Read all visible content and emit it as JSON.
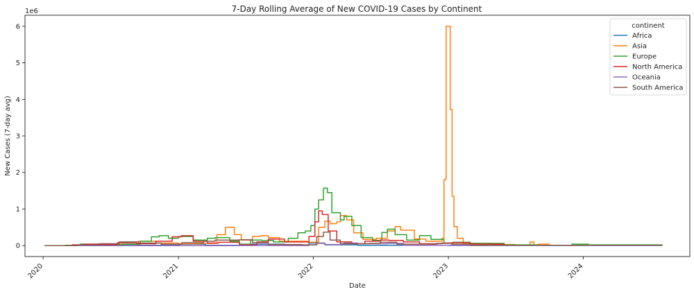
{
  "chart_data": {
    "type": "line",
    "title": "7-Day Rolling Average of New COVID-19 Cases by Continent",
    "xlabel": "Date",
    "ylabel": "New Cases (7-day avg)",
    "y_offset_label": "1e6",
    "xlim": [
      "2019-11-13",
      "2024-10-15"
    ],
    "ylim": [
      -0.3,
      6.3
    ],
    "y_scale_factor": 1000000,
    "x_ticks": [
      {
        "date": "2020-01-01",
        "label": "2020"
      },
      {
        "date": "2021-01-01",
        "label": "2021"
      },
      {
        "date": "2022-01-01",
        "label": "2022"
      },
      {
        "date": "2023-01-01",
        "label": "2023"
      },
      {
        "date": "2024-01-01",
        "label": "2024"
      }
    ],
    "y_ticks": [
      0,
      1,
      2,
      3,
      4,
      5,
      6
    ],
    "grid": false,
    "legend": {
      "title": "continent",
      "position": "top-right"
    },
    "series": [
      {
        "name": "Africa",
        "color": "#1f77b4",
        "points": [
          [
            "2020-01-05",
            0
          ],
          [
            "2020-05-01",
            0.005
          ],
          [
            "2020-07-20",
            0.03
          ],
          [
            "2020-09-15",
            0.01
          ],
          [
            "2021-01-05",
            0.04
          ],
          [
            "2021-03-15",
            0.01
          ],
          [
            "2021-07-15",
            0.04
          ],
          [
            "2021-10-15",
            0.01
          ],
          [
            "2021-12-20",
            0.07
          ],
          [
            "2022-02-01",
            0.02
          ],
          [
            "2022-05-01",
            0.01
          ],
          [
            "2023-01-01",
            0.003
          ],
          [
            "2024-08-01",
            0
          ]
        ]
      },
      {
        "name": "Asia",
        "color": "#ff7f0e",
        "points": [
          [
            "2020-01-05",
            0
          ],
          [
            "2020-04-01",
            0.01
          ],
          [
            "2020-06-15",
            0.04
          ],
          [
            "2020-09-15",
            0.12
          ],
          [
            "2020-11-01",
            0.07
          ],
          [
            "2021-01-01",
            0.05
          ],
          [
            "2021-03-01",
            0.06
          ],
          [
            "2021-04-15",
            0.3
          ],
          [
            "2021-05-08",
            0.5
          ],
          [
            "2021-06-01",
            0.3
          ],
          [
            "2021-06-20",
            0.15
          ],
          [
            "2021-07-20",
            0.25
          ],
          [
            "2021-08-10",
            0.27
          ],
          [
            "2021-09-01",
            0.22
          ],
          [
            "2021-10-01",
            0.12
          ],
          [
            "2021-12-15",
            0.09
          ],
          [
            "2022-01-15",
            0.5
          ],
          [
            "2022-02-01",
            0.67
          ],
          [
            "2022-02-15",
            0.6
          ],
          [
            "2022-03-05",
            0.65
          ],
          [
            "2022-03-15",
            0.82
          ],
          [
            "2022-04-01",
            0.7
          ],
          [
            "2022-04-20",
            0.35
          ],
          [
            "2022-05-15",
            0.17
          ],
          [
            "2022-06-20",
            0.2
          ],
          [
            "2022-07-20",
            0.4
          ],
          [
            "2022-08-10",
            0.52
          ],
          [
            "2022-08-25",
            0.42
          ],
          [
            "2022-10-01",
            0.18
          ],
          [
            "2022-11-01",
            0.12
          ],
          [
            "2022-12-15",
            0.2
          ],
          [
            "2022-12-20",
            1.8
          ],
          [
            "2022-12-25",
            1.85
          ],
          [
            "2022-12-26",
            6.0
          ],
          [
            "2023-01-05",
            6.0
          ],
          [
            "2023-01-06",
            3.72
          ],
          [
            "2023-01-10",
            3.72
          ],
          [
            "2023-01-11",
            1.35
          ],
          [
            "2023-01-15",
            1.35
          ],
          [
            "2023-01-16",
            0.52
          ],
          [
            "2023-01-20",
            0.52
          ],
          [
            "2023-01-25",
            0.2
          ],
          [
            "2023-02-10",
            0.05
          ],
          [
            "2023-03-01",
            0.06
          ],
          [
            "2023-05-01",
            0.03
          ],
          [
            "2023-07-01",
            0.01
          ],
          [
            "2023-08-10",
            0.1
          ],
          [
            "2023-08-20",
            0.01
          ],
          [
            "2023-09-01",
            0.04
          ],
          [
            "2023-10-01",
            0.01
          ],
          [
            "2024-08-01",
            0
          ]
        ]
      },
      {
        "name": "Europe",
        "color": "#2ca02c",
        "points": [
          [
            "2020-01-05",
            0
          ],
          [
            "2020-03-01",
            0.01
          ],
          [
            "2020-04-10",
            0.04
          ],
          [
            "2020-06-01",
            0.02
          ],
          [
            "2020-08-01",
            0.04
          ],
          [
            "2020-09-20",
            0.12
          ],
          [
            "2020-10-20",
            0.24
          ],
          [
            "2020-11-10",
            0.27
          ],
          [
            "2020-12-05",
            0.2
          ],
          [
            "2021-01-01",
            0.25
          ],
          [
            "2021-02-10",
            0.15
          ],
          [
            "2021-03-20",
            0.2
          ],
          [
            "2021-04-10",
            0.22
          ],
          [
            "2021-05-20",
            0.12
          ],
          [
            "2021-06-15",
            0.04
          ],
          [
            "2021-07-15",
            0.15
          ],
          [
            "2021-08-15",
            0.14
          ],
          [
            "2021-09-15",
            0.1
          ],
          [
            "2021-10-25",
            0.2
          ],
          [
            "2021-11-20",
            0.35
          ],
          [
            "2021-12-10",
            0.4
          ],
          [
            "2021-12-25",
            0.55
          ],
          [
            "2022-01-05",
            1.0
          ],
          [
            "2022-01-15",
            1.25
          ],
          [
            "2022-01-28",
            1.57
          ],
          [
            "2022-02-08",
            1.45
          ],
          [
            "2022-02-20",
            0.9
          ],
          [
            "2022-03-15",
            0.7
          ],
          [
            "2022-03-25",
            0.8
          ],
          [
            "2022-04-15",
            0.55
          ],
          [
            "2022-05-10",
            0.22
          ],
          [
            "2022-06-10",
            0.14
          ],
          [
            "2022-07-05",
            0.36
          ],
          [
            "2022-07-20",
            0.45
          ],
          [
            "2022-08-10",
            0.3
          ],
          [
            "2022-09-10",
            0.15
          ],
          [
            "2022-10-15",
            0.27
          ],
          [
            "2022-11-15",
            0.17
          ],
          [
            "2022-12-20",
            0.07
          ],
          [
            "2023-01-15",
            0.09
          ],
          [
            "2023-03-01",
            0.06
          ],
          [
            "2023-06-01",
            0.02
          ],
          [
            "2023-09-01",
            0.01
          ],
          [
            "2023-12-01",
            0.04
          ],
          [
            "2024-01-15",
            0.02
          ],
          [
            "2024-08-01",
            0.01
          ]
        ]
      },
      {
        "name": "North America",
        "color": "#d62728",
        "points": [
          [
            "2020-01-05",
            0
          ],
          [
            "2020-03-20",
            0.02
          ],
          [
            "2020-04-20",
            0.04
          ],
          [
            "2020-06-01",
            0.03
          ],
          [
            "2020-07-20",
            0.08
          ],
          [
            "2020-09-10",
            0.05
          ],
          [
            "2020-11-01",
            0.12
          ],
          [
            "2020-12-15",
            0.24
          ],
          [
            "2021-01-10",
            0.27
          ],
          [
            "2021-02-10",
            0.12
          ],
          [
            "2021-03-20",
            0.07
          ],
          [
            "2021-04-20",
            0.09
          ],
          [
            "2021-06-15",
            0.02
          ],
          [
            "2021-08-01",
            0.1
          ],
          [
            "2021-09-01",
            0.18
          ],
          [
            "2021-10-15",
            0.1
          ],
          [
            "2021-12-01",
            0.1
          ],
          [
            "2021-12-20",
            0.25
          ],
          [
            "2022-01-05",
            0.65
          ],
          [
            "2022-01-15",
            0.95
          ],
          [
            "2022-01-25",
            0.85
          ],
          [
            "2022-02-10",
            0.4
          ],
          [
            "2022-03-05",
            0.1
          ],
          [
            "2022-04-15",
            0.05
          ],
          [
            "2022-05-20",
            0.12
          ],
          [
            "2022-07-01",
            0.15
          ],
          [
            "2022-07-25",
            0.14
          ],
          [
            "2022-09-01",
            0.1
          ],
          [
            "2022-10-15",
            0.05
          ],
          [
            "2022-12-15",
            0.07
          ],
          [
            "2023-01-10",
            0.08
          ],
          [
            "2023-03-01",
            0.04
          ],
          [
            "2023-06-01",
            0.01
          ],
          [
            "2024-08-01",
            0
          ]
        ]
      },
      {
        "name": "Oceania",
        "color": "#9467bd",
        "points": [
          [
            "2020-01-05",
            0
          ],
          [
            "2021-06-01",
            0.002
          ],
          [
            "2021-12-20",
            0.02
          ],
          [
            "2022-01-10",
            0.06
          ],
          [
            "2022-02-01",
            0.03
          ],
          [
            "2022-03-25",
            0.07
          ],
          [
            "2022-05-01",
            0.05
          ],
          [
            "2022-07-20",
            0.06
          ],
          [
            "2022-09-01",
            0.01
          ],
          [
            "2023-01-01",
            0.01
          ],
          [
            "2024-08-01",
            0
          ]
        ]
      },
      {
        "name": "South America",
        "color": "#8c564b",
        "points": [
          [
            "2020-01-05",
            0
          ],
          [
            "2020-04-01",
            0.02
          ],
          [
            "2020-06-01",
            0.05
          ],
          [
            "2020-07-25",
            0.1
          ],
          [
            "2020-09-15",
            0.07
          ],
          [
            "2020-11-15",
            0.04
          ],
          [
            "2021-01-10",
            0.08
          ],
          [
            "2021-03-10",
            0.12
          ],
          [
            "2021-04-10",
            0.15
          ],
          [
            "2021-06-15",
            0.16
          ],
          [
            "2021-07-20",
            0.08
          ],
          [
            "2021-09-01",
            0.03
          ],
          [
            "2021-12-01",
            0.02
          ],
          [
            "2022-01-10",
            0.25
          ],
          [
            "2022-01-28",
            0.37
          ],
          [
            "2022-02-15",
            0.15
          ],
          [
            "2022-03-15",
            0.05
          ],
          [
            "2022-06-01",
            0.06
          ],
          [
            "2022-07-01",
            0.09
          ],
          [
            "2022-08-15",
            0.04
          ],
          [
            "2022-12-01",
            0.06
          ],
          [
            "2023-01-10",
            0.04
          ],
          [
            "2023-03-01",
            0.01
          ],
          [
            "2024-08-01",
            0
          ]
        ]
      }
    ]
  }
}
